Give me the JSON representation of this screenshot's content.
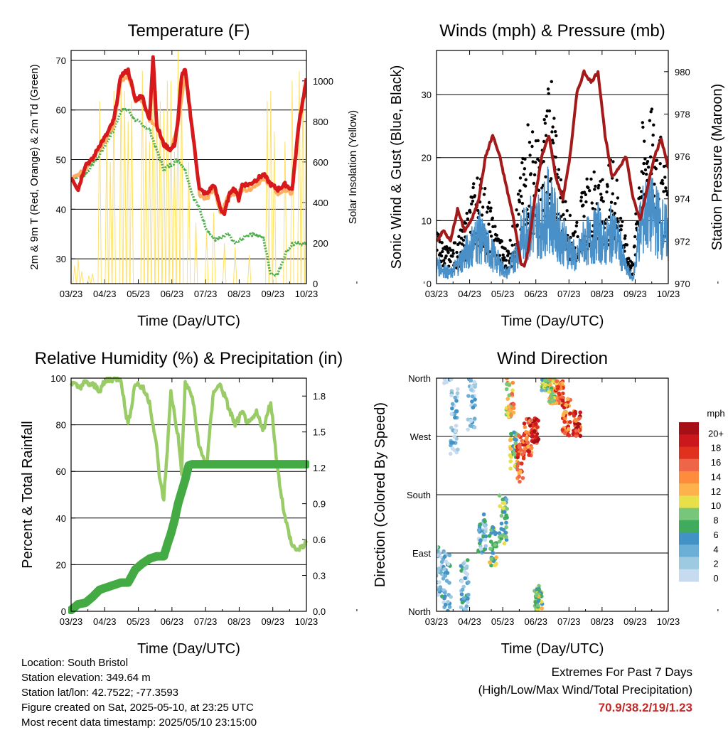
{
  "chart_data": [
    {
      "type": "line",
      "title": "Temperature (F)",
      "xlabel": "Time (Day/UTC)",
      "ylabel": "2m & 9m T (Red, Orange) & 2m Td (Green)",
      "ylabel_right": "Solar Insolation (Yellow)",
      "ylim": [
        25,
        72
      ],
      "ylim_right": [
        0,
        1150
      ],
      "y_ticks": [
        30,
        40,
        50,
        60,
        70
      ],
      "y_right_ticks": [
        0,
        200,
        400,
        600,
        800,
        1000
      ],
      "x_ticks": [
        "03/23",
        "04/23",
        "05/23",
        "06/23",
        "07/23",
        "08/23",
        "09/23",
        "10/23"
      ],
      "series": [
        {
          "name": "2m T",
          "color": "#d7191c",
          "x": [
            0,
            2,
            4,
            6,
            8,
            10,
            12,
            14,
            16,
            18,
            20,
            21,
            22,
            23,
            24,
            26,
            28,
            29,
            30,
            31,
            32,
            34,
            36,
            38,
            40,
            42,
            43,
            44,
            45,
            46,
            47,
            48,
            50,
            52,
            54,
            56,
            58,
            60,
            62,
            64,
            66,
            68,
            70,
            72,
            74,
            76,
            78,
            80,
            81,
            82,
            83,
            84,
            85,
            86
          ],
          "values": [
            46.5,
            44,
            49,
            50,
            53,
            55,
            58,
            67,
            68,
            62,
            63,
            60,
            58,
            71,
            57,
            53,
            52,
            53,
            58,
            67,
            68,
            56,
            44,
            43,
            45,
            40,
            39,
            42,
            44,
            44,
            42,
            45,
            45,
            46,
            47,
            45,
            44,
            45,
            44,
            58,
            66,
            66,
            67,
            65,
            65,
            63,
            62,
            61,
            60,
            60,
            59,
            59,
            59,
            58
          ]
        },
        {
          "name": "9m T",
          "color": "#fdae61",
          "x": [
            0,
            4,
            8,
            12,
            14,
            16,
            18,
            20,
            22,
            24,
            26,
            28,
            30,
            32,
            34,
            36,
            38,
            40,
            42,
            44,
            46,
            48,
            50,
            52,
            54,
            56,
            58,
            60,
            62,
            64,
            66
          ],
          "values": [
            46,
            48,
            52,
            57,
            66,
            67,
            62,
            62,
            58,
            57,
            53,
            52,
            57,
            67,
            56,
            43,
            42,
            44,
            39,
            43,
            43,
            44,
            44,
            45,
            46,
            45,
            43,
            44,
            43,
            57,
            65
          ]
        },
        {
          "name": "2m Td",
          "color": "#4daf4a",
          "x": [
            0,
            4,
            8,
            12,
            14,
            16,
            18,
            20,
            22,
            24,
            26,
            28,
            30,
            32,
            34,
            36,
            38,
            40,
            42,
            44,
            46,
            48,
            50,
            52,
            54,
            56,
            58,
            60,
            62,
            64
          ],
          "values": [
            46,
            47,
            51,
            56,
            60,
            60,
            58,
            57,
            56,
            52,
            48,
            49,
            50,
            48,
            43,
            40,
            36,
            34,
            34,
            35,
            33,
            34,
            35,
            35,
            34,
            27,
            27,
            31,
            33,
            33
          ]
        },
        {
          "name": "Solar Insolation",
          "color": "#ffe066",
          "axis": "right",
          "days": [
            1,
            2,
            3,
            5,
            6,
            8,
            10,
            11,
            12,
            14,
            15,
            16,
            17,
            20,
            21,
            22,
            23,
            24,
            25,
            26,
            27,
            28,
            29,
            30,
            31,
            33,
            35,
            38,
            40,
            43,
            46,
            50,
            55,
            56,
            57,
            60,
            62,
            64,
            65,
            66
          ],
          "peaks": [
            90,
            120,
            60,
            40,
            50,
            900,
            750,
            600,
            950,
            1000,
            950,
            800,
            900,
            1050,
            800,
            700,
            1080,
            950,
            900,
            850,
            1000,
            1000,
            650,
            1150,
            980,
            600,
            300,
            250,
            350,
            200,
            180,
            140,
            900,
            950,
            750,
            700,
            1000,
            1050,
            980,
            900
          ]
        }
      ]
    },
    {
      "type": "scatter",
      "title": "Winds (mph) & Pressure (mb)",
      "xlabel": "Time (Day/UTC)",
      "ylabel": "Sonic Wind & Gust (Blue, Black)",
      "ylabel_right": "Station Pressure (Maroon)",
      "ylim": [
        0,
        37
      ],
      "ylim_right": [
        970,
        981
      ],
      "y_ticks": [
        0,
        10,
        20,
        30
      ],
      "y_right_ticks": [
        970,
        972,
        974,
        976,
        978,
        980
      ],
      "x_ticks": [
        "03/23",
        "04/23",
        "05/23",
        "06/23",
        "07/23",
        "08/23",
        "09/23",
        "10/23"
      ],
      "series": [
        {
          "name": "Gust",
          "color": "#000000",
          "x": [
            0,
            2,
            4,
            6,
            8,
            10,
            12,
            14,
            16,
            18,
            20,
            22,
            24,
            26,
            28,
            30,
            32,
            34,
            36,
            38,
            40,
            42,
            44,
            46,
            48,
            50,
            52,
            54,
            56,
            58,
            60,
            62,
            64,
            66
          ],
          "values": [
            8,
            6,
            5,
            7,
            9,
            14,
            17,
            14,
            10,
            7,
            5,
            9,
            16,
            25,
            22,
            20,
            34,
            22,
            14,
            10,
            9,
            15,
            16,
            18,
            14,
            20,
            14,
            6,
            3,
            22,
            26,
            25,
            21,
            17
          ]
        },
        {
          "name": "Wind",
          "color": "#4a90c8",
          "x": [
            0,
            2,
            4,
            6,
            8,
            10,
            12,
            14,
            16,
            18,
            20,
            22,
            24,
            26,
            28,
            30,
            32,
            34,
            36,
            38,
            40,
            42,
            44,
            46,
            48,
            50,
            52,
            54,
            56,
            58,
            60,
            62,
            64,
            66
          ],
          "values": [
            4,
            3,
            2,
            4,
            6,
            8,
            10,
            8,
            6,
            4,
            2,
            5,
            9,
            12,
            12,
            13,
            16,
            12,
            9,
            7,
            5,
            9,
            9,
            11,
            8,
            11,
            8,
            3,
            1,
            12,
            15,
            14,
            12,
            10
          ]
        },
        {
          "name": "Station Pressure",
          "color": "#a31a1a",
          "axis": "right",
          "x": [
            0,
            2,
            4,
            6,
            8,
            10,
            12,
            14,
            16,
            18,
            20,
            22,
            24,
            25,
            26,
            28,
            30,
            32,
            34,
            36,
            38,
            40,
            42,
            44,
            46,
            48,
            50,
            52,
            54,
            56,
            58,
            60,
            62,
            64,
            66
          ],
          "values": [
            972,
            972.5,
            972,
            973.5,
            972.5,
            973,
            974,
            976,
            977,
            976,
            974.5,
            973,
            971,
            970.8,
            971.5,
            974,
            976,
            977,
            975,
            974,
            976,
            979,
            980,
            979.5,
            980,
            977,
            975,
            975.5,
            976,
            974,
            973,
            974.5,
            976,
            976.8,
            975.5
          ]
        }
      ]
    },
    {
      "type": "line",
      "title": "Relative Humidity (%) & Precipitation (in)",
      "xlabel": "Time (Day/UTC)",
      "ylabel": "Percent & Total Rainfall",
      "ylim": [
        0,
        100
      ],
      "ylim_right": [
        0,
        1.95
      ],
      "y_ticks": [
        0,
        20,
        40,
        60,
        80,
        100
      ],
      "y_right_ticks": [
        "0.0",
        "0.3",
        "0.6",
        "0.9",
        "1.2",
        "1.5",
        "1.8"
      ],
      "x_ticks": [
        "03/23",
        "04/23",
        "05/23",
        "06/23",
        "07/23",
        "08/23",
        "09/23",
        "10/23"
      ],
      "series": [
        {
          "name": "Relative Humidity",
          "color": "#99cc66",
          "x": [
            0,
            2,
            4,
            6,
            8,
            10,
            12,
            14,
            15,
            16,
            18,
            20,
            22,
            24,
            25,
            26,
            27,
            28,
            30,
            31,
            32,
            34,
            36,
            38,
            40,
            42,
            44,
            46,
            48,
            50,
            52,
            54,
            56,
            58,
            60,
            62,
            64,
            66
          ],
          "values": [
            98,
            96,
            98,
            97,
            95,
            99,
            100,
            100,
            88,
            80,
            98,
            96,
            90,
            70,
            55,
            48,
            70,
            94,
            75,
            60,
            98,
            92,
            70,
            62,
            95,
            97,
            88,
            80,
            85,
            80,
            85,
            78,
            90,
            60,
            40,
            28,
            26,
            30
          ]
        },
        {
          "name": "Total Precipitation",
          "color": "#44aa44",
          "axis": "right",
          "x": [
            0,
            2,
            4,
            6,
            8,
            10,
            12,
            14,
            16,
            18,
            20,
            22,
            24,
            26,
            27,
            28,
            29,
            30,
            31,
            32,
            33,
            34,
            66
          ],
          "values": [
            0.01,
            0.06,
            0.07,
            0.12,
            0.18,
            0.2,
            0.22,
            0.24,
            0.24,
            0.35,
            0.4,
            0.44,
            0.46,
            0.46,
            0.56,
            0.65,
            0.76,
            0.9,
            1.0,
            1.1,
            1.22,
            1.23,
            1.23
          ]
        }
      ]
    },
    {
      "type": "scatter",
      "title": "Wind Direction",
      "xlabel": "Time (Day/UTC)",
      "ylabel": "Direction (Colored By Speed)",
      "ylim": [
        0,
        360
      ],
      "y_ticks": [
        "North",
        "East",
        "South",
        "West",
        "North"
      ],
      "x_ticks": [
        "03/23",
        "04/23",
        "05/23",
        "06/23",
        "07/23",
        "08/23",
        "09/23",
        "10/23"
      ],
      "colorbar": {
        "title": "mph",
        "labels": [
          "20+",
          "18",
          "16",
          "14",
          "12",
          "10",
          "8",
          "6",
          "4",
          "2",
          "0"
        ],
        "colors": [
          "#a50f15",
          "#cb181d",
          "#e0301e",
          "#ef6548",
          "#fd8d3c",
          "#feb24c",
          "#e8e04a",
          "#78c679",
          "#41ab5d",
          "#4292c6",
          "#6baed6",
          "#9ecae1",
          "#c6dbef"
        ]
      },
      "clusters": [
        {
          "x": 1,
          "dir": 60,
          "spread": 40,
          "speed": 3
        },
        {
          "x": 3,
          "dir": 40,
          "spread": 50,
          "speed": 2
        },
        {
          "x": 5,
          "dir": 300,
          "spread": 60,
          "speed": 2
        },
        {
          "x": 8,
          "dir": 40,
          "spread": 40,
          "speed": 3
        },
        {
          "x": 10,
          "dir": 320,
          "spread": 40,
          "speed": 2
        },
        {
          "x": 13,
          "dir": 120,
          "spread": 30,
          "speed": 4
        },
        {
          "x": 16,
          "dir": 100,
          "spread": 30,
          "speed": 8
        },
        {
          "x": 19,
          "dir": 140,
          "spread": 40,
          "speed": 7
        },
        {
          "x": 21,
          "dir": 330,
          "spread": 30,
          "speed": 12
        },
        {
          "x": 22,
          "dir": 250,
          "spread": 30,
          "speed": 8
        },
        {
          "x": 24,
          "dir": 240,
          "spread": 40,
          "speed": 15
        },
        {
          "x": 26,
          "dir": 270,
          "spread": 30,
          "speed": 16
        },
        {
          "x": 28,
          "dir": 280,
          "spread": 20,
          "speed": 18
        },
        {
          "x": 29,
          "dir": 20,
          "spread": 20,
          "speed": 8
        },
        {
          "x": 31,
          "dir": 350,
          "spread": 10,
          "speed": 7
        },
        {
          "x": 33,
          "dir": 340,
          "spread": 20,
          "speed": 10
        },
        {
          "x": 35,
          "dir": 340,
          "spread": 20,
          "speed": 14
        },
        {
          "x": 37,
          "dir": 300,
          "spread": 30,
          "speed": 15
        },
        {
          "x": 40,
          "dir": 290,
          "spread": 20,
          "speed": 17
        }
      ]
    }
  ],
  "footer": {
    "location": "Location: South Bristol",
    "elevation": "Station elevation: 349.64 m",
    "latlon": "Station lat/lon: 42.7522; -77.3593",
    "created": "Figure created on Sat, 2025-05-10, at 23:25 UTC",
    "latest": "Most recent data timestamp: 2025/05/10 23:15:00"
  },
  "extremes": {
    "title": "Extremes For Past 7 Days",
    "subtitle": "(High/Low/Max Wind/Total Precipitation)",
    "values": "70.9/38.2/19/1.23"
  }
}
